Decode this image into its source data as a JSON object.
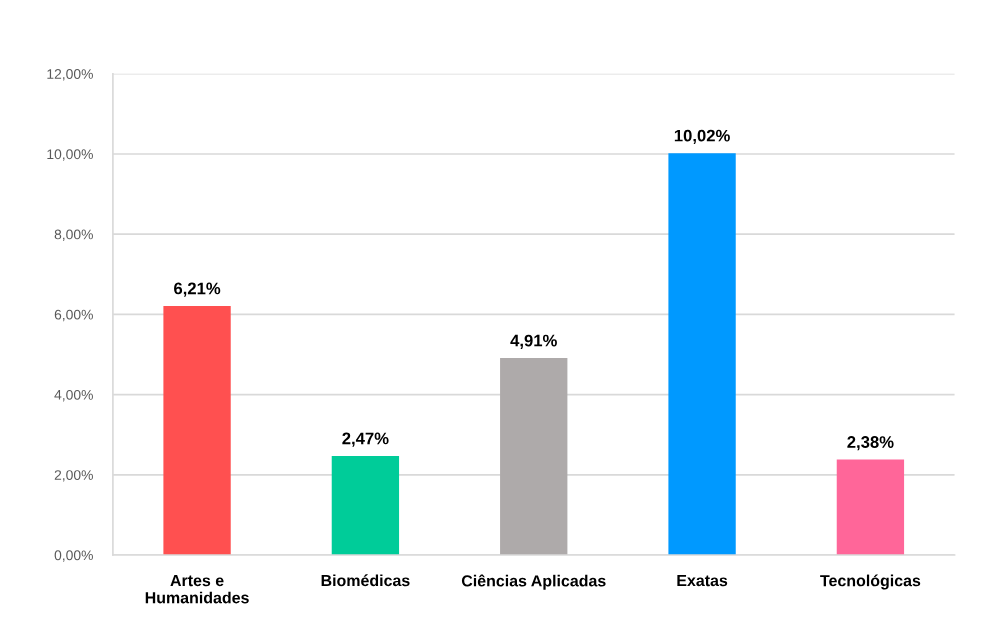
{
  "chart_data": {
    "type": "bar",
    "categories": [
      "Artes e\nHumanidades",
      "Biomédicas",
      "Ciências Aplicadas",
      "Exatas",
      "Tecnológicas"
    ],
    "values": [
      6.21,
      2.47,
      4.91,
      10.02,
      2.38
    ],
    "colors": [
      "#ff5050",
      "#00cc99",
      "#aeaaaa",
      "#0099ff",
      "#ff6699"
    ],
    "value_labels": [
      "6,21%",
      "2,47%",
      "4,91%",
      "10,02%",
      "2,38%"
    ],
    "ylim": [
      0,
      12
    ],
    "yticks": [
      {
        "value": 0,
        "label": "0,00%"
      },
      {
        "value": 2,
        "label": "2,00%"
      },
      {
        "value": 4,
        "label": "4,00%"
      },
      {
        "value": 6,
        "label": "6,00%"
      },
      {
        "value": 8,
        "label": "8,00%"
      },
      {
        "value": 10,
        "label": "10,00%"
      },
      {
        "value": 12,
        "label": "12,00%"
      }
    ],
    "grid": "y"
  }
}
